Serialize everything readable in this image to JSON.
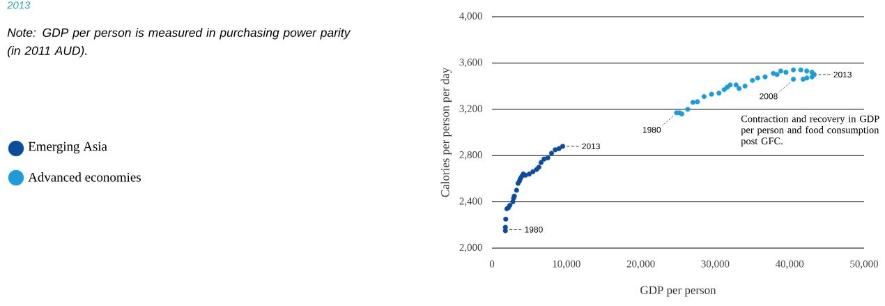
{
  "chart_data": {
    "type": "scatter",
    "title": "2013",
    "xlabel": "GDP per person",
    "ylabel": "Calories per person per day",
    "xlim": [
      0,
      50000
    ],
    "ylim": [
      2000,
      4000
    ],
    "xticks": [
      0,
      {
        "value": 10000,
        "label": "10,000"
      },
      {
        "value": 20000,
        "label": "20,000"
      },
      {
        "value": 30000,
        "label": "30,000"
      },
      {
        "value": 40000,
        "label": "40,000"
      },
      {
        "value": 50000,
        "label": "50,000"
      }
    ],
    "yticks": [
      {
        "value": 2000,
        "label": "2,000"
      },
      {
        "value": 2400,
        "label": "2,400"
      },
      {
        "value": 2800,
        "label": "2,800"
      },
      {
        "value": 3200,
        "label": "3,200"
      },
      {
        "value": 3600,
        "label": "3,600"
      },
      {
        "value": 4000,
        "label": "4,000"
      }
    ],
    "grid": "y",
    "legend": "left",
    "marker": "circle",
    "series": [
      {
        "name": "Emerging Asia",
        "color": "#0b4c9c",
        "x": [
          1800,
          1800,
          1850,
          2000,
          2200,
          2400,
          2800,
          2900,
          3000,
          3300,
          3500,
          3700,
          3800,
          4000,
          4200,
          4500,
          5000,
          5500,
          6000,
          6300,
          6600,
          7000,
          7500,
          8000,
          8500,
          9000,
          9500
        ],
        "values": [
          2150,
          2180,
          2250,
          2340,
          2350,
          2370,
          2400,
          2430,
          2450,
          2500,
          2560,
          2580,
          2600,
          2620,
          2640,
          2630,
          2640,
          2660,
          2680,
          2700,
          2740,
          2770,
          2780,
          2820,
          2850,
          2860,
          2880
        ]
      },
      {
        "name": "Advanced economies",
        "color": "#1c9cd8",
        "x": [
          24800,
          25200,
          25500,
          26300,
          27000,
          27600,
          28500,
          29500,
          30500,
          31200,
          31600,
          32000,
          32800,
          33200,
          34000,
          35000,
          35700,
          36700,
          37800,
          38300,
          38800,
          39500,
          40500,
          41500,
          42300,
          43000,
          40500,
          41800,
          42300,
          43000,
          43300
        ],
        "values": [
          3170,
          3170,
          3160,
          3200,
          3260,
          3265,
          3310,
          3330,
          3340,
          3370,
          3390,
          3410,
          3410,
          3380,
          3400,
          3450,
          3470,
          3480,
          3510,
          3500,
          3530,
          3520,
          3540,
          3540,
          3530,
          3520,
          3460,
          3460,
          3470,
          3480,
          3500
        ]
      }
    ],
    "annotations": [
      {
        "text": "1980",
        "x": 1800,
        "y": 2160
      },
      {
        "text": "2013",
        "x": 9500,
        "y": 2880
      },
      {
        "text": "1980",
        "x": 24800,
        "y": 3170
      },
      {
        "text": "2008",
        "x": 40500,
        "y": 3460
      },
      {
        "text": "2013",
        "x": 43300,
        "y": 3500
      },
      "Contraction and recovery in GDP per person and food consumption post GFC.",
      "Note: GDP per person is measured in purchasing power parity (in 2011 AUD)."
    ]
  }
}
